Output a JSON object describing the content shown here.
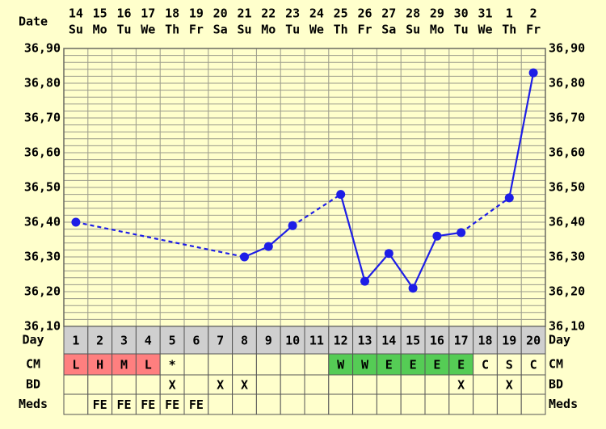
{
  "chart_data": {
    "type": "line",
    "row_labels": {
      "date": "Date",
      "day": "Day",
      "cm": "CM",
      "bd": "BD",
      "meds": "Meds"
    },
    "dates": [
      "14",
      "15",
      "16",
      "17",
      "18",
      "19",
      "20",
      "21",
      "22",
      "23",
      "24",
      "25",
      "26",
      "27",
      "28",
      "29",
      "30",
      "31",
      "1",
      "2"
    ],
    "weekdays": [
      "Su",
      "Mo",
      "Tu",
      "We",
      "Th",
      "Fr",
      "Sa",
      "Su",
      "Mo",
      "Tu",
      "We",
      "Th",
      "Fr",
      "Sa",
      "Su",
      "Mo",
      "Tu",
      "We",
      "Th",
      "Fr"
    ],
    "days": [
      "1",
      "2",
      "3",
      "4",
      "5",
      "6",
      "7",
      "8",
      "9",
      "10",
      "11",
      "12",
      "13",
      "14",
      "15",
      "16",
      "17",
      "18",
      "19",
      "20"
    ],
    "ylim": [
      36.1,
      36.9
    ],
    "y_ticks": [
      "36,10",
      "36,20",
      "36,30",
      "36,40",
      "36,50",
      "36,60",
      "36,70",
      "36,80",
      "36,90"
    ],
    "temperatures": [
      36.4,
      null,
      null,
      null,
      null,
      null,
      null,
      36.3,
      36.33,
      36.39,
      null,
      36.48,
      36.23,
      36.31,
      36.21,
      36.36,
      36.37,
      null,
      36.47,
      36.83
    ],
    "cm": [
      "L",
      "H",
      "M",
      "L",
      "*",
      "",
      "",
      "",
      "",
      "",
      "",
      "W",
      "W",
      "E",
      "E",
      "E",
      "E",
      "C",
      "S",
      "C"
    ],
    "cm_colors": {
      "L": "#ff7f7f",
      "H": "#ff7f7f",
      "M": "#ff7f7f",
      "W": "#55cc55",
      "E": "#55cc55"
    },
    "bd": [
      "",
      "",
      "",
      "",
      "X",
      "",
      "X",
      "X",
      "",
      "",
      "",
      "",
      "",
      "",
      "",
      "",
      "X",
      "",
      "X",
      ""
    ],
    "meds": [
      "",
      "FE",
      "FE",
      "FE",
      "FE",
      "FE",
      "",
      "",
      "",
      "",
      "",
      "",
      "",
      "",
      "",
      "",
      "",
      "",
      "",
      ""
    ],
    "colors": {
      "line": "#1e1ee6",
      "grid": "#9a9a8a",
      "background": "#ffffcc",
      "day_row": "#cfcfcf",
      "cell_border": "#555555"
    }
  }
}
